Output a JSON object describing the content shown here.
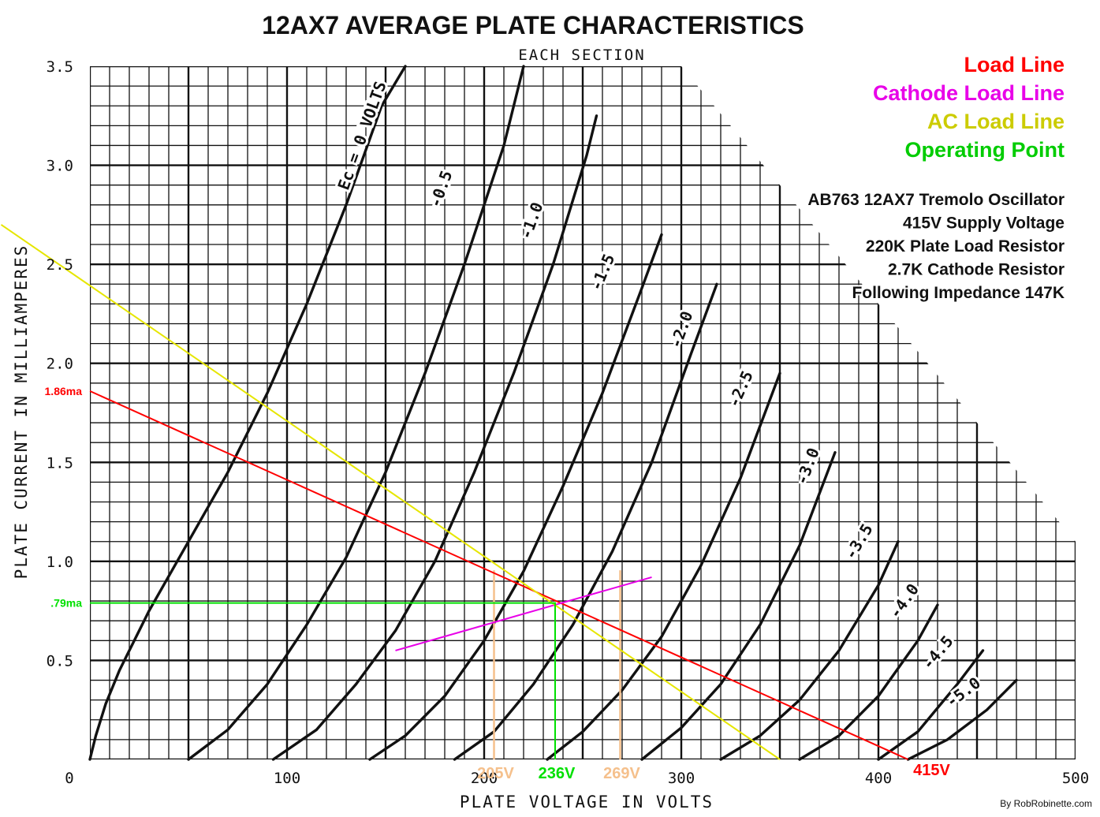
{
  "chart_data": {
    "type": "line",
    "title": "12AX7 AVERAGE PLATE CHARACTERISTICS",
    "subtitle": "EACH SECTION",
    "xlabel": "PLATE VOLTAGE IN VOLTS",
    "ylabel": "PLATE CURRENT IN MILLIAMPERES",
    "xlim": [
      0,
      500
    ],
    "ylim": [
      0,
      3.5
    ],
    "x_ticks": [
      {
        "value": 0,
        "label": "0"
      },
      {
        "value": 100,
        "label": "100"
      },
      {
        "value": 200,
        "label": "200"
      },
      {
        "value": 300,
        "label": "300"
      },
      {
        "value": 400,
        "label": "400"
      },
      {
        "value": 500,
        "label": "500"
      }
    ],
    "y_ticks": [
      {
        "value": 0.5,
        "label": "0.5"
      },
      {
        "value": 1.0,
        "label": "1.0"
      },
      {
        "value": 1.5,
        "label": "1.5"
      },
      {
        "value": 2.0,
        "label": "2.0"
      },
      {
        "value": 2.5,
        "label": "2.5"
      },
      {
        "value": 3.0,
        "label": "3.0"
      },
      {
        "value": 3.5,
        "label": "3.5"
      }
    ],
    "grid": true,
    "grid_minor_step_x": 10,
    "grid_minor_step_y": 0.1,
    "grid_boundary": [
      [
        300,
        3.5
      ],
      [
        500,
        1.1
      ]
    ],
    "curves": [
      {
        "label": "Ec = 0 VOLTS",
        "label_at": [
          138,
          3.15
        ],
        "points": [
          [
            0,
            0
          ],
          [
            3,
            0.12
          ],
          [
            8,
            0.28
          ],
          [
            15,
            0.45
          ],
          [
            30,
            0.75
          ],
          [
            50,
            1.1
          ],
          [
            70,
            1.45
          ],
          [
            90,
            1.85
          ],
          [
            110,
            2.3
          ],
          [
            130,
            2.8
          ],
          [
            148,
            3.3
          ],
          [
            160,
            3.5
          ]
        ]
      },
      {
        "label": "-0.5",
        "label_at": [
          178,
          2.88
        ],
        "points": [
          [
            50,
            0
          ],
          [
            70,
            0.15
          ],
          [
            90,
            0.38
          ],
          [
            110,
            0.68
          ],
          [
            130,
            1.02
          ],
          [
            150,
            1.45
          ],
          [
            170,
            1.95
          ],
          [
            190,
            2.5
          ],
          [
            210,
            3.1
          ],
          [
            220,
            3.5
          ]
        ]
      },
      {
        "label": "-1.0",
        "label_at": [
          224,
          2.72
        ],
        "points": [
          [
            93,
            0
          ],
          [
            115,
            0.15
          ],
          [
            135,
            0.38
          ],
          [
            155,
            0.65
          ],
          [
            175,
            1.0
          ],
          [
            195,
            1.45
          ],
          [
            215,
            1.95
          ],
          [
            235,
            2.5
          ],
          [
            252,
            3.05
          ],
          [
            257,
            3.25
          ]
        ]
      },
      {
        "label": "-1.5",
        "label_at": [
          260,
          2.46
        ],
        "points": [
          [
            142,
            0
          ],
          [
            160,
            0.12
          ],
          [
            180,
            0.32
          ],
          [
            200,
            0.6
          ],
          [
            220,
            0.95
          ],
          [
            240,
            1.38
          ],
          [
            260,
            1.85
          ],
          [
            280,
            2.38
          ],
          [
            290,
            2.65
          ]
        ]
      },
      {
        "label": "-2.0",
        "label_at": [
          300,
          2.17
        ],
        "points": [
          [
            185,
            0
          ],
          [
            205,
            0.14
          ],
          [
            225,
            0.38
          ],
          [
            245,
            0.68
          ],
          [
            265,
            1.05
          ],
          [
            285,
            1.5
          ],
          [
            305,
            2.05
          ],
          [
            318,
            2.4
          ]
        ]
      },
      {
        "label": "-2.5",
        "label_at": [
          330,
          1.87
        ],
        "points": [
          [
            232,
            0
          ],
          [
            250,
            0.14
          ],
          [
            270,
            0.35
          ],
          [
            290,
            0.62
          ],
          [
            310,
            0.98
          ],
          [
            330,
            1.42
          ],
          [
            350,
            1.95
          ]
        ]
      },
      {
        "label": "-3.0",
        "label_at": [
          364,
          1.48
        ],
        "points": [
          [
            280,
            0
          ],
          [
            300,
            0.16
          ],
          [
            320,
            0.38
          ],
          [
            340,
            0.68
          ],
          [
            360,
            1.08
          ],
          [
            378,
            1.55
          ]
        ]
      },
      {
        "label": "-3.5",
        "label_at": [
          390,
          1.1
        ],
        "points": [
          [
            320,
            0
          ],
          [
            340,
            0.12
          ],
          [
            360,
            0.3
          ],
          [
            380,
            0.55
          ],
          [
            400,
            0.88
          ],
          [
            410,
            1.1
          ]
        ]
      },
      {
        "label": "-4.0",
        "label_at": [
          413,
          0.8
        ],
        "points": [
          [
            360,
            0
          ],
          [
            380,
            0.12
          ],
          [
            400,
            0.32
          ],
          [
            420,
            0.6
          ],
          [
            430,
            0.78
          ]
        ]
      },
      {
        "label": "-4.5",
        "label_at": [
          430,
          0.54
        ],
        "points": [
          [
            400,
            0
          ],
          [
            420,
            0.14
          ],
          [
            440,
            0.38
          ],
          [
            453,
            0.55
          ]
        ]
      },
      {
        "label": "-5.0",
        "label_at": [
          443,
          0.34
        ],
        "points": [
          [
            415,
            0
          ],
          [
            435,
            0.1
          ],
          [
            455,
            0.25
          ],
          [
            470,
            0.4
          ]
        ]
      }
    ],
    "overlays": [
      {
        "name": "Load Line",
        "color": "#ff0000",
        "points": [
          [
            0,
            1.86
          ],
          [
            415,
            0
          ]
        ]
      },
      {
        "name": "Cathode Load Line",
        "color": "#e800e8",
        "points": [
          [
            155,
            0.55
          ],
          [
            285,
            0.92
          ]
        ]
      },
      {
        "name": "AC Load Line",
        "color": "#e6e600",
        "points": [
          [
            -45,
            2.7
          ],
          [
            350,
            0
          ]
        ]
      },
      {
        "name": "Operating Point",
        "color": "#00e000",
        "points": [
          [
            0,
            0.79
          ],
          [
            236,
            0.79
          ],
          [
            236,
            0
          ]
        ]
      }
    ],
    "markers": [
      {
        "x": 205,
        "color": "#f5c08c"
      },
      {
        "x": 269,
        "color": "#f5c08c"
      }
    ],
    "annotations": {
      "y_current": [
        {
          "value": 1.86,
          "label": "1.86ma",
          "color": "#ff0000"
        },
        {
          "value": 0.79,
          "label": ".79ma",
          "color": "#00e000"
        }
      ],
      "x_voltage": [
        {
          "value": 205,
          "label": "205V",
          "color": "#f5c08c"
        },
        {
          "value": 236,
          "label": "236V",
          "color": "#00e000"
        },
        {
          "value": 269,
          "label": "269V",
          "color": "#f5c08c"
        },
        {
          "value": 415,
          "label": "415V",
          "color": "#ff0000"
        }
      ]
    },
    "legend": [
      {
        "label": "Load Line",
        "color": "#ff0000"
      },
      {
        "label": "Cathode Load Line",
        "color": "#e800e8"
      },
      {
        "label": "AC Load Line",
        "color": "#cccc00"
      },
      {
        "label": "Operating Point",
        "color": "#00cc00"
      }
    ],
    "legend_position": "top-right",
    "notes": [
      "AB763 12AX7 Tremolo Oscillator",
      "415V Supply Voltage",
      "220K Plate Load Resistor",
      "2.7K Cathode Resistor",
      "Following Impedance 147K"
    ],
    "credit": "By RobRobinette.com"
  }
}
